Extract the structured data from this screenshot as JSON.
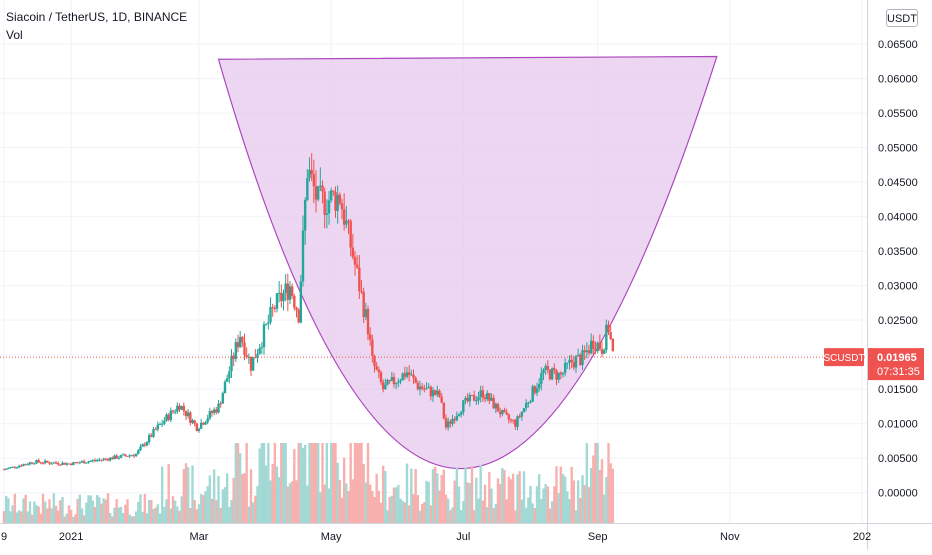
{
  "chart_data": {
    "type": "candlestick",
    "title": "Siacoin / TetherUS, 1D, BINANCE",
    "indicator": "Vol",
    "currency_label": "USDT",
    "symbol": "SCUSDT",
    "last_price": "0.01965",
    "countdown": "07:31:35",
    "x_tick_labels": [
      "9",
      "2021",
      "Mar",
      "May",
      "Jul",
      "Sep",
      "Nov",
      "202"
    ],
    "y_tick_labels": [
      "0.00000",
      "0.00500",
      "0.01000",
      "0.01500",
      "0.02000",
      "0.02500",
      "0.03000",
      "0.03500",
      "0.04000",
      "0.04500",
      "0.05000",
      "0.05500",
      "0.06000",
      "0.06500"
    ],
    "ylim": [
      -0.0025,
      0.0695
    ],
    "trend_points": [
      [
        "2020-12-01",
        0.0034
      ],
      [
        "2020-12-15",
        0.0045
      ],
      [
        "2020-12-31",
        0.0042
      ],
      [
        "2021-01-15",
        0.0048
      ],
      [
        "2021-01-31",
        0.0056
      ],
      [
        "2021-02-10",
        0.0095
      ],
      [
        "2021-02-20",
        0.0128
      ],
      [
        "2021-02-28",
        0.0095
      ],
      [
        "2021-03-10",
        0.0125
      ],
      [
        "2021-03-20",
        0.023
      ],
      [
        "2021-03-25",
        0.0185
      ],
      [
        "2021-04-05",
        0.027
      ],
      [
        "2021-04-12",
        0.03
      ],
      [
        "2021-04-16",
        0.026
      ],
      [
        "2021-04-20",
        0.047
      ],
      [
        "2021-04-25",
        0.042
      ],
      [
        "2021-05-05",
        0.043
      ],
      [
        "2021-05-12",
        0.033
      ],
      [
        "2021-05-18",
        0.024
      ],
      [
        "2021-05-20",
        0.019
      ],
      [
        "2021-05-25",
        0.015
      ],
      [
        "2021-06-05",
        0.0175
      ],
      [
        "2021-06-10",
        0.0155
      ],
      [
        "2021-06-20",
        0.014
      ],
      [
        "2021-06-23",
        0.0095
      ],
      [
        "2021-07-01",
        0.0128
      ],
      [
        "2021-07-10",
        0.0145
      ],
      [
        "2021-07-20",
        0.011
      ],
      [
        "2021-07-25",
        0.01
      ],
      [
        "2021-08-01",
        0.014
      ],
      [
        "2021-08-07",
        0.0175
      ],
      [
        "2021-08-15",
        0.017
      ],
      [
        "2021-08-20",
        0.019
      ],
      [
        "2021-08-25",
        0.0195
      ],
      [
        "2021-08-30",
        0.022
      ],
      [
        "2021-09-03",
        0.021
      ],
      [
        "2021-09-06",
        0.024
      ],
      [
        "2021-09-08",
        0.02
      ]
    ],
    "cup_pattern": {
      "left": [
        "2021-03-10",
        0.0628
      ],
      "right": [
        "2021-10-26",
        0.0632
      ],
      "bottom": [
        "2021-06-30",
        0.0035
      ]
    },
    "colors": {
      "up": "#26a69a",
      "down": "#ef5350",
      "cup_fill": "#e6c8ec",
      "cup_stroke": "#ab47bc",
      "vol_up": "#a3d9d4",
      "vol_down": "#f7b0ae"
    }
  }
}
